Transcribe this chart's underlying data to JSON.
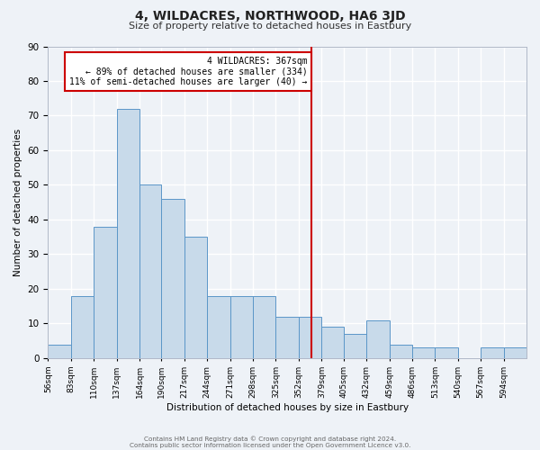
{
  "title": "4, WILDACRES, NORTHWOOD, HA6 3JD",
  "subtitle": "Size of property relative to detached houses in Eastbury",
  "xlabel": "Distribution of detached houses by size in Eastbury",
  "ylabel": "Number of detached properties",
  "bar_color": "#c8daea",
  "bar_edge_color": "#5b96c8",
  "background_color": "#eef2f7",
  "grid_color": "#ffffff",
  "bin_labels": [
    "56sqm",
    "83sqm",
    "110sqm",
    "137sqm",
    "164sqm",
    "190sqm",
    "217sqm",
    "244sqm",
    "271sqm",
    "298sqm",
    "325sqm",
    "352sqm",
    "379sqm",
    "405sqm",
    "432sqm",
    "459sqm",
    "486sqm",
    "513sqm",
    "540sqm",
    "567sqm",
    "594sqm"
  ],
  "bin_edges": [
    56,
    83,
    110,
    137,
    164,
    190,
    217,
    244,
    271,
    298,
    325,
    352,
    379,
    405,
    432,
    459,
    486,
    513,
    540,
    567,
    594,
    621
  ],
  "bar_values": [
    4,
    18,
    38,
    72,
    50,
    46,
    35,
    18,
    18,
    18,
    12,
    12,
    9,
    7,
    11,
    4,
    3,
    3,
    0,
    3,
    3
  ],
  "ylim": [
    0,
    90
  ],
  "yticks": [
    0,
    10,
    20,
    30,
    40,
    50,
    60,
    70,
    80,
    90
  ],
  "vline_x": 367,
  "vline_color": "#cc0000",
  "annotation_text": "4 WILDACRES: 367sqm\n← 89% of detached houses are smaller (334)\n11% of semi-detached houses are larger (40) →",
  "annotation_box_color": "#ffffff",
  "annotation_box_edge": "#cc0000",
  "footer_line1": "Contains HM Land Registry data © Crown copyright and database right 2024.",
  "footer_line2": "Contains public sector information licensed under the Open Government Licence v3.0."
}
